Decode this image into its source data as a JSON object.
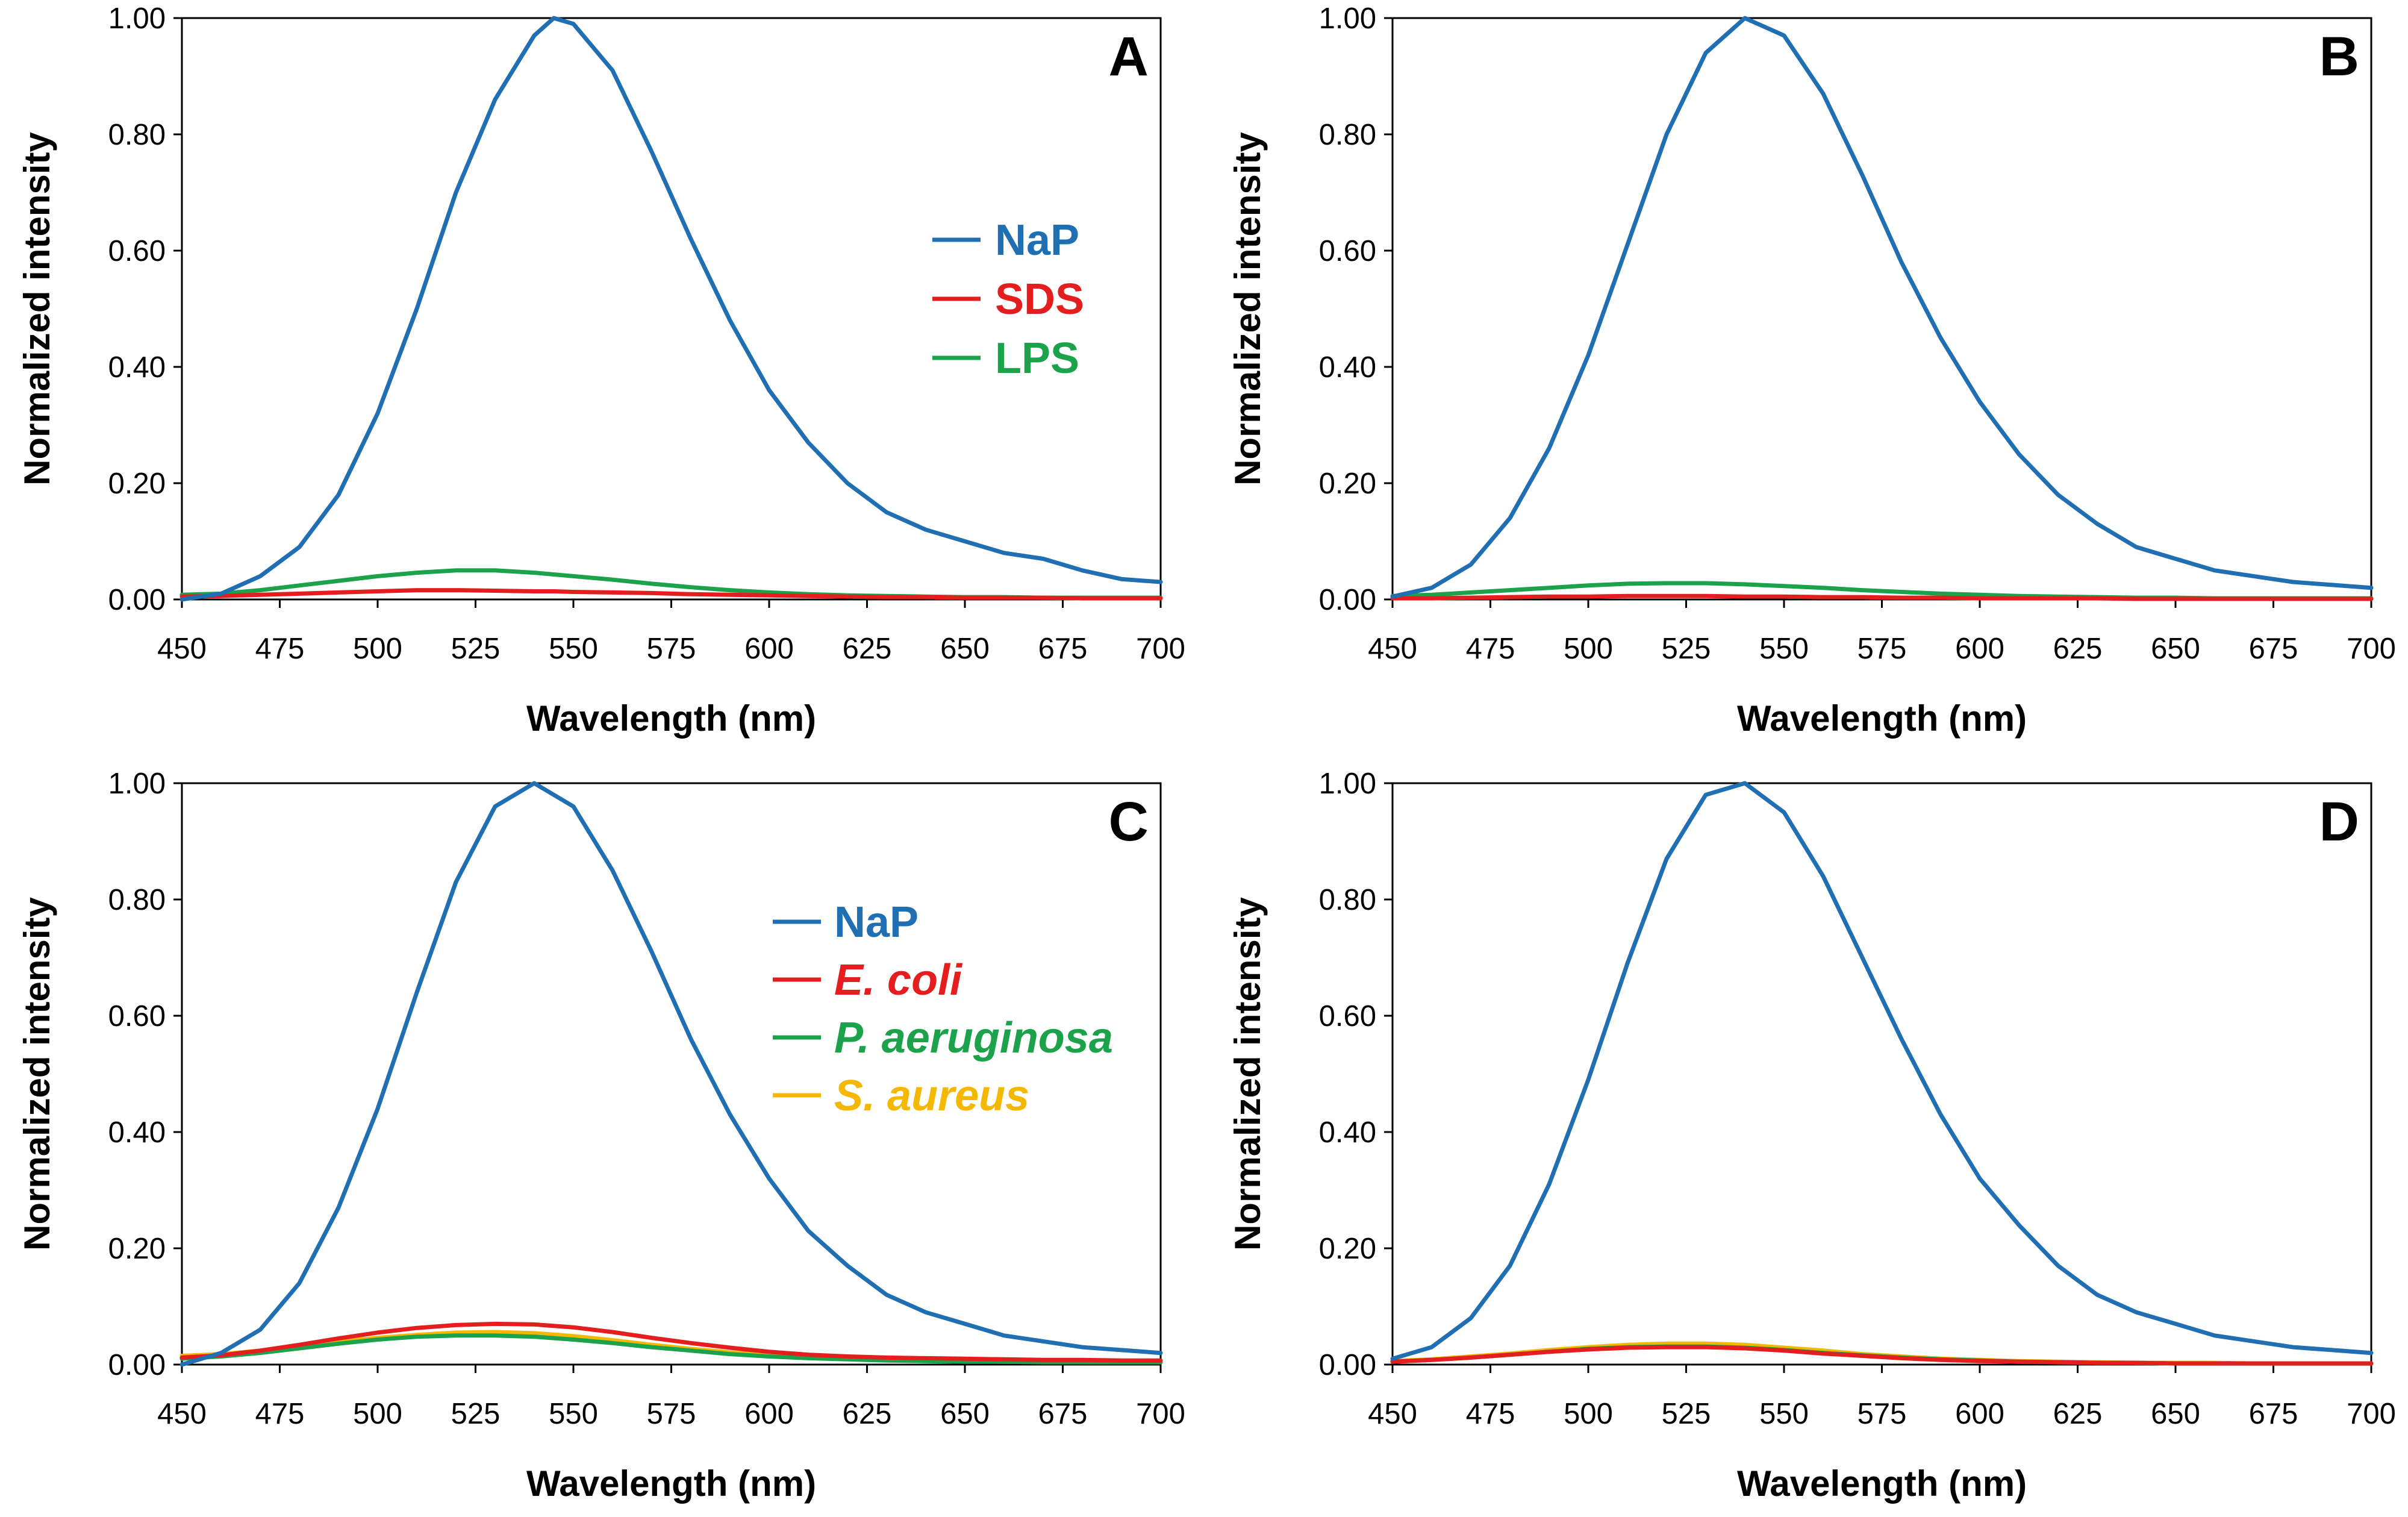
{
  "chart_data": [
    {
      "panel": "A",
      "type": "line",
      "xlabel": "Wavelength (nm)",
      "ylabel": "Normalized intensity",
      "xlim": [
        450,
        700
      ],
      "ylim": [
        0,
        1
      ],
      "xticks": [
        "450",
        "475",
        "500",
        "525",
        "550",
        "575",
        "600",
        "625",
        "650",
        "675",
        "700"
      ],
      "yticks": [
        "0.00",
        "0.20",
        "0.40",
        "0.60",
        "0.80",
        "1.00"
      ],
      "legend_position": "upper-right",
      "x": [
        450,
        460,
        470,
        480,
        490,
        500,
        510,
        520,
        530,
        540,
        545,
        550,
        560,
        570,
        580,
        590,
        600,
        610,
        620,
        630,
        640,
        650,
        660,
        670,
        680,
        690,
        700
      ],
      "series": [
        {
          "name": "NaP",
          "color": "#1F6FB2",
          "italic": false,
          "values": [
            0.0,
            0.01,
            0.04,
            0.09,
            0.18,
            0.32,
            0.5,
            0.7,
            0.86,
            0.97,
            1.0,
            0.99,
            0.91,
            0.77,
            0.62,
            0.48,
            0.36,
            0.27,
            0.2,
            0.15,
            0.12,
            0.1,
            0.08,
            0.07,
            0.05,
            0.035,
            0.03
          ]
        },
        {
          "name": "SDS",
          "color": "#E41E1E",
          "italic": false,
          "values": [
            0.005,
            0.006,
            0.008,
            0.01,
            0.012,
            0.014,
            0.016,
            0.016,
            0.015,
            0.014,
            0.014,
            0.013,
            0.012,
            0.011,
            0.009,
            0.008,
            0.007,
            0.006,
            0.005,
            0.004,
            0.004,
            0.003,
            0.003,
            0.003,
            0.002,
            0.002,
            0.002
          ]
        },
        {
          "name": "LPS",
          "color": "#1BA24B",
          "italic": false,
          "values": [
            0.008,
            0.01,
            0.016,
            0.024,
            0.032,
            0.04,
            0.046,
            0.05,
            0.05,
            0.046,
            0.043,
            0.04,
            0.034,
            0.027,
            0.021,
            0.016,
            0.012,
            0.009,
            0.007,
            0.006,
            0.005,
            0.004,
            0.004,
            0.003,
            0.003,
            0.003,
            0.003
          ]
        }
      ]
    },
    {
      "panel": "B",
      "type": "line",
      "xlabel": "Wavelength (nm)",
      "ylabel": "Normalized intensity",
      "xlim": [
        450,
        700
      ],
      "ylim": [
        0,
        1
      ],
      "xticks": [
        "450",
        "475",
        "500",
        "525",
        "550",
        "575",
        "600",
        "625",
        "650",
        "675",
        "700"
      ],
      "yticks": [
        "0.00",
        "0.20",
        "0.40",
        "0.60",
        "0.80",
        "1.00"
      ],
      "x": [
        450,
        460,
        470,
        480,
        490,
        500,
        510,
        520,
        530,
        540,
        550,
        560,
        570,
        580,
        590,
        600,
        610,
        620,
        630,
        640,
        650,
        660,
        670,
        680,
        690,
        700
      ],
      "series": [
        {
          "name": "NaP",
          "color": "#1F6FB2",
          "values": [
            0.005,
            0.02,
            0.06,
            0.14,
            0.26,
            0.42,
            0.61,
            0.8,
            0.94,
            1.0,
            0.97,
            0.87,
            0.73,
            0.58,
            0.45,
            0.34,
            0.25,
            0.18,
            0.13,
            0.09,
            0.07,
            0.05,
            0.04,
            0.03,
            0.025,
            0.02
          ]
        },
        {
          "name": "SDS",
          "color": "#E41E1E",
          "values": [
            0.002,
            0.002,
            0.003,
            0.004,
            0.005,
            0.005,
            0.006,
            0.006,
            0.006,
            0.005,
            0.005,
            0.004,
            0.004,
            0.003,
            0.003,
            0.002,
            0.002,
            0.002,
            0.002,
            0.001,
            0.001,
            0.001,
            0.001,
            0.001,
            0.001,
            0.001
          ]
        },
        {
          "name": "LPS",
          "color": "#1BA24B",
          "values": [
            0.006,
            0.008,
            0.012,
            0.016,
            0.02,
            0.024,
            0.027,
            0.028,
            0.028,
            0.026,
            0.023,
            0.02,
            0.016,
            0.013,
            0.01,
            0.008,
            0.006,
            0.005,
            0.004,
            0.003,
            0.003,
            0.002,
            0.002,
            0.002,
            0.002,
            0.002
          ]
        }
      ]
    },
    {
      "panel": "C",
      "type": "line",
      "xlabel": "Wavelength (nm)",
      "ylabel": "Normalized intensity",
      "xlim": [
        450,
        700
      ],
      "ylim": [
        0,
        1
      ],
      "xticks": [
        "450",
        "475",
        "500",
        "525",
        "550",
        "575",
        "600",
        "625",
        "650",
        "675",
        "700"
      ],
      "yticks": [
        "0.00",
        "0.20",
        "0.40",
        "0.60",
        "0.80",
        "1.00"
      ],
      "legend_position": "upper-right",
      "x": [
        450,
        460,
        470,
        480,
        490,
        500,
        510,
        520,
        530,
        540,
        550,
        560,
        570,
        580,
        590,
        600,
        610,
        620,
        630,
        640,
        650,
        660,
        670,
        680,
        690,
        700
      ],
      "series": [
        {
          "name": "NaP",
          "color": "#1F6FB2",
          "italic": false,
          "values": [
            0.0,
            0.02,
            0.06,
            0.14,
            0.27,
            0.44,
            0.64,
            0.83,
            0.96,
            1.0,
            0.96,
            0.85,
            0.71,
            0.56,
            0.43,
            0.32,
            0.23,
            0.17,
            0.12,
            0.09,
            0.07,
            0.05,
            0.04,
            0.03,
            0.025,
            0.02
          ]
        },
        {
          "name": "E. coli",
          "color": "#E41E1E",
          "italic": true,
          "values": [
            0.012,
            0.016,
            0.024,
            0.034,
            0.045,
            0.055,
            0.063,
            0.068,
            0.07,
            0.069,
            0.064,
            0.056,
            0.046,
            0.037,
            0.029,
            0.022,
            0.017,
            0.014,
            0.012,
            0.011,
            0.01,
            0.009,
            0.008,
            0.008,
            0.007,
            0.007
          ]
        },
        {
          "name": "P. aeruginosa",
          "color": "#1BA24B",
          "italic": true,
          "values": [
            0.01,
            0.014,
            0.02,
            0.028,
            0.036,
            0.043,
            0.048,
            0.05,
            0.05,
            0.048,
            0.043,
            0.037,
            0.03,
            0.024,
            0.018,
            0.014,
            0.011,
            0.009,
            0.007,
            0.006,
            0.005,
            0.005,
            0.004,
            0.004,
            0.004,
            0.004
          ]
        },
        {
          "name": "S. aureus",
          "color": "#F5B800",
          "italic": true,
          "values": [
            0.015,
            0.018,
            0.024,
            0.031,
            0.039,
            0.046,
            0.051,
            0.055,
            0.056,
            0.054,
            0.049,
            0.042,
            0.034,
            0.027,
            0.021,
            0.016,
            0.012,
            0.01,
            0.008,
            0.007,
            0.006,
            0.005,
            0.005,
            0.004,
            0.004,
            0.004
          ]
        }
      ]
    },
    {
      "panel": "D",
      "type": "line",
      "xlabel": "Wavelength (nm)",
      "ylabel": "Normalized intensity",
      "xlim": [
        450,
        700
      ],
      "ylim": [
        0,
        1
      ],
      "xticks": [
        "450",
        "475",
        "500",
        "525",
        "550",
        "575",
        "600",
        "625",
        "650",
        "675",
        "700"
      ],
      "yticks": [
        "0.00",
        "0.20",
        "0.40",
        "0.60",
        "0.80",
        "1.00"
      ],
      "x": [
        450,
        460,
        470,
        480,
        490,
        500,
        510,
        520,
        530,
        540,
        550,
        560,
        570,
        580,
        590,
        600,
        610,
        620,
        630,
        640,
        650,
        660,
        670,
        680,
        690,
        700
      ],
      "series": [
        {
          "name": "NaP",
          "color": "#1F6FB2",
          "values": [
            0.01,
            0.03,
            0.08,
            0.17,
            0.31,
            0.49,
            0.69,
            0.87,
            0.98,
            1.0,
            0.95,
            0.84,
            0.7,
            0.56,
            0.43,
            0.32,
            0.24,
            0.17,
            0.12,
            0.09,
            0.07,
            0.05,
            0.04,
            0.03,
            0.025,
            0.02
          ]
        },
        {
          "name": "E. coli",
          "color": "#E41E1E",
          "values": [
            0.005,
            0.008,
            0.012,
            0.017,
            0.022,
            0.026,
            0.029,
            0.03,
            0.03,
            0.028,
            0.024,
            0.019,
            0.015,
            0.011,
            0.008,
            0.006,
            0.005,
            0.004,
            0.003,
            0.003,
            0.002,
            0.002,
            0.002,
            0.002,
            0.002,
            0.002
          ]
        },
        {
          "name": "P. aeruginosa",
          "color": "#1BA24B",
          "values": [
            0.005,
            0.008,
            0.012,
            0.017,
            0.022,
            0.027,
            0.03,
            0.031,
            0.031,
            0.029,
            0.025,
            0.02,
            0.016,
            0.012,
            0.009,
            0.007,
            0.005,
            0.004,
            0.003,
            0.003,
            0.002,
            0.002,
            0.002,
            0.002,
            0.002,
            0.002
          ]
        },
        {
          "name": "S. aureus",
          "color": "#F5B800",
          "values": [
            0.006,
            0.009,
            0.014,
            0.019,
            0.025,
            0.03,
            0.034,
            0.036,
            0.036,
            0.034,
            0.029,
            0.024,
            0.018,
            0.014,
            0.01,
            0.008,
            0.006,
            0.005,
            0.004,
            0.003,
            0.003,
            0.003,
            0.002,
            0.002,
            0.002,
            0.002
          ]
        }
      ]
    }
  ]
}
